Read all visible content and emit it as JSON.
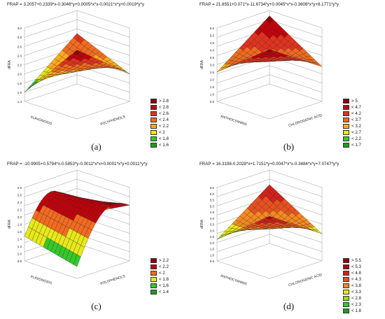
{
  "chart_data": [
    {
      "type": "surface",
      "panel_label": "(a)",
      "title": "FRAP = 3.2057+0.2339*x-0.3046*y+0.0005*x*x-0.0021*x*y+0.0019*y*y",
      "zlabel": "dFRA",
      "xlabel": "POLYPHENOLS",
      "ylabel": "FLAVONOIDS",
      "zlim": [
        1.4,
        3.0
      ],
      "zticks": [
        "1.4",
        "1.6",
        "1.8",
        "2.0",
        "2.2",
        "2.4",
        "2.6",
        "2.8",
        "3.0"
      ],
      "legend": [
        "> 2.8",
        "< 2.8",
        "< 2.6",
        "< 2.4",
        "< 2.2",
        "< 2",
        "< 1.8",
        "< 1.6"
      ],
      "colors": [
        "#8b0000",
        "#c0000b",
        "#e0321e",
        "#f26b1f",
        "#ffaa1a",
        "#e8e81a",
        "#36c82a",
        "#1f9c20"
      ],
      "corner_values": [
        2.5,
        1.6,
        2.0,
        2.9
      ],
      "surface_shape": "bowl"
    },
    {
      "type": "surface",
      "panel_label": "(b)",
      "title": "FRAP = 21.8551+0.071*x-11.6734*y+0.0045*x*x-0.3608*x*y+8.1771*y*y",
      "zlabel": "dFRA",
      "xlabel": "CHLOROGENIC ACID",
      "ylabel": "ANTHOCYANINS",
      "zlim": [
        0,
        5.5
      ],
      "zticks": [
        "0.5",
        "1.0",
        "1.5",
        "2.0",
        "2.5",
        "3.0",
        "3.5",
        "4.0",
        "4.5",
        "5.0",
        "5.5"
      ],
      "legend": [
        "> 5",
        "< 4.7",
        "< 4.2",
        "< 3.7",
        "< 3.2",
        "< 2.7",
        "< 2.2",
        "< 1.7"
      ],
      "colors": [
        "#8b0000",
        "#c0000b",
        "#e0321e",
        "#f26b1f",
        "#ffaa1a",
        "#e8e81a",
        "#36c82a",
        "#1f9c20"
      ],
      "corner_values": [
        5.1,
        2.2,
        2.6,
        5.2
      ],
      "surface_shape": "bowl"
    },
    {
      "type": "surface",
      "panel_label": "(c)",
      "title": "FRAP = -10.9905+0.5794*x-0.5853*y-0.0011*x*x+0.0001*x*y+0.0011*y*y",
      "zlabel": "dFRA",
      "xlabel": "POLYPHENOLS",
      "ylabel": "FLAVONOIDS",
      "zlim": [
        0.8,
        2.8
      ],
      "zticks": [
        "0.8",
        "1.0",
        "1.2",
        "1.4",
        "1.6",
        "1.8",
        "2.0",
        "2.2",
        "2.4",
        "2.6",
        "2.8"
      ],
      "legend": [
        "> 2.2",
        "< 2.2",
        "< 2",
        "< 1.8",
        "< 1.6",
        "< 1.4"
      ],
      "colors": [
        "#8b0000",
        "#c0000b",
        "#f26b1f",
        "#e8e81a",
        "#36c82a",
        "#1f9c20"
      ],
      "corner_values": [
        1.4,
        1.3,
        2.2,
        1.0
      ],
      "surface_shape": "ridge"
    },
    {
      "type": "surface",
      "panel_label": "(d)",
      "title": "FRAP = 16.3198-0.2028*x+1.7151*y+0.0047*x*x-0.3484*x*y+7.0747*y*y",
      "zlabel": "dFRA",
      "xlabel": "CHLOROGENIC ACID",
      "ylabel": "ANTHOCYANINS",
      "zlim": [
        0,
        6.5
      ],
      "zticks": [
        "0.5",
        "1.0",
        "1.5",
        "2.0",
        "2.5",
        "3.0",
        "3.5",
        "4.0",
        "4.5",
        "5.0",
        "5.5",
        "6.0",
        "6.5"
      ],
      "legend": [
        "> 5.5",
        "< 5.3",
        "< 4.8",
        "< 4.3",
        "< 3.8",
        "< 3.3",
        "< 2.8",
        "< 2.3",
        "< 1.8"
      ],
      "colors": [
        "#8b0000",
        "#b0000b",
        "#d0201a",
        "#e8501e",
        "#f68a1f",
        "#e8e81a",
        "#9ad81e",
        "#36c82a",
        "#1f9c20"
      ],
      "corner_values": [
        5.2,
        1.9,
        2.4,
        5.5
      ],
      "surface_shape": "bowl"
    }
  ]
}
